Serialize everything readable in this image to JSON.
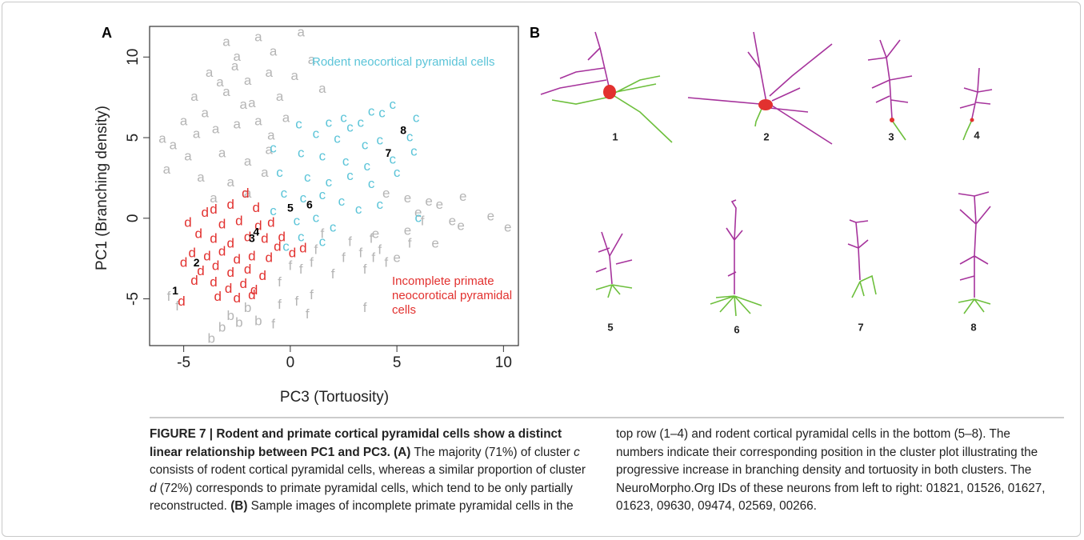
{
  "chart_data": {
    "type": "scatter",
    "panel": "A",
    "xlabel": "PC3 (Tortuosity)",
    "ylabel": "PC1 (Branching density)",
    "xlim": [
      -6.6,
      10.7
    ],
    "ylim": [
      -7.9,
      11.9
    ],
    "xticks": [
      -5,
      0,
      5,
      10
    ],
    "yticks": [
      -5,
      0,
      5,
      10
    ],
    "series": [
      {
        "name": "a",
        "color": "#b5b5b5",
        "x": [
          -3,
          -1.5,
          0.5,
          -2.5,
          -0.8,
          1,
          -3.8,
          -2,
          -1,
          0.2,
          -4.5,
          -3,
          -2.2,
          -0.5,
          1.5,
          -5,
          -4,
          -3.5,
          -2.5,
          -1.5,
          -0.2,
          -5.5,
          -4.8,
          -3.2,
          -2,
          -1,
          -4.2,
          -2.8,
          -1.2,
          -3.6,
          -2,
          -5.8,
          -6,
          -3.3,
          -2.6,
          -4.4,
          -1.8,
          -0.9
        ],
        "y": [
          10.9,
          11.2,
          11.5,
          10,
          10.3,
          9.8,
          9,
          8.5,
          9,
          8.8,
          7.5,
          7.8,
          7,
          7.5,
          8,
          6,
          6.5,
          5.5,
          5.8,
          6,
          6.2,
          4.5,
          3.8,
          4,
          3.5,
          4.2,
          2.5,
          2.2,
          2.8,
          1.2,
          1.5,
          3,
          4.9,
          8.4,
          9.4,
          5.2,
          7.1,
          5.1
        ]
      },
      {
        "name": "e",
        "color": "#b5b5b5",
        "x": [
          5.5,
          6.5,
          7,
          8.1,
          9.4,
          10.2,
          6,
          7.6,
          6.8,
          5.5,
          4.5,
          8,
          5,
          4
        ],
        "y": [
          1.2,
          1,
          0.8,
          1.3,
          0.1,
          -0.6,
          0.3,
          -0.2,
          -1.6,
          -0.8,
          1.5,
          -0.5,
          -2.5,
          -1
        ]
      },
      {
        "name": "f",
        "color": "#b5b5b5",
        "x": [
          -5.7,
          -5.3,
          3.8,
          4.2,
          4.5,
          3.5,
          3.9,
          3.3,
          1,
          0.3,
          -0.5,
          3.5,
          0.8,
          -0.8,
          6.2,
          5.6,
          1.2,
          2.5,
          2,
          0.5,
          1.5,
          0,
          2.8,
          -0.5,
          1
        ],
        "y": [
          -4.9,
          -5.5,
          -1.3,
          -2,
          -2.8,
          -3.2,
          -2.5,
          -2.2,
          -4.8,
          -5.2,
          -5.4,
          -5.6,
          -6,
          -6.6,
          -0.2,
          -1.6,
          -2,
          -2.5,
          -3.5,
          -3.2,
          -1,
          -3,
          -1.5,
          -4,
          -2.8
        ]
      },
      {
        "name": "b",
        "color": "#b5b5b5",
        "x": [
          -2.4,
          -2.8,
          -2,
          -1.5,
          -3.2,
          -3.7
        ],
        "y": [
          -6.5,
          -6.1,
          -5.6,
          -6.4,
          -6.8,
          -7.5
        ]
      },
      {
        "name": "c",
        "color": "#5bc4d8",
        "x": [
          4.8,
          5.9,
          3.8,
          4.3,
          2.5,
          1.8,
          2.8,
          3.3,
          0.4,
          1.2,
          2.2,
          3.5,
          4.2,
          5.6,
          5.8,
          -0.8,
          0.5,
          1.5,
          2.6,
          3.6,
          4.8,
          -0.5,
          0.8,
          1.8,
          2.8,
          3.8,
          -0.3,
          0.6,
          1.5,
          2.4,
          3.2,
          -0.8,
          0.3,
          1.2,
          2,
          0.5,
          1.5,
          -0.2,
          6,
          4.2,
          5
        ],
        "y": [
          7,
          6.2,
          6.6,
          6.5,
          6.2,
          5.9,
          5.6,
          5.9,
          5.8,
          5.2,
          4.9,
          4.5,
          4.8,
          5,
          4.1,
          4.3,
          4,
          3.8,
          3.5,
          3.2,
          3.6,
          2.8,
          2.5,
          2.2,
          2.6,
          2.1,
          1.5,
          1.2,
          1.4,
          1,
          0.5,
          0.4,
          -0.2,
          0,
          -0.6,
          -1.2,
          -1.5,
          -1.8,
          0,
          0.8,
          2.8
        ]
      },
      {
        "name": "d",
        "color": "#e2312f",
        "x": [
          -2.1,
          -1.6,
          -3.6,
          -2.8,
          -4,
          -3.2,
          -2.4,
          -1.5,
          -4.8,
          -4.3,
          -3.6,
          -2.8,
          -2,
          -1.2,
          -0.6,
          -4.6,
          -3.9,
          -3.2,
          -2.5,
          -1.8,
          -1,
          -5,
          -4.2,
          -3.5,
          -2.8,
          -2,
          -1.3,
          -4.5,
          -3.6,
          -2.9,
          -2.2,
          -1.7,
          -3.4,
          -2.5,
          -5.1,
          0.1,
          0.6,
          -0.4,
          -0.9,
          -1.8
        ],
        "y": [
          1.5,
          0.6,
          0.5,
          0.8,
          0.3,
          -0.4,
          -0.2,
          -0.5,
          -0.3,
          -1,
          -1.3,
          -1.6,
          -1.2,
          -1.3,
          -1.8,
          -2.2,
          -2.4,
          -2.1,
          -2.6,
          -2.4,
          -2.5,
          -2.8,
          -3.3,
          -3,
          -3.4,
          -3.2,
          -3.6,
          -3.9,
          -4,
          -4.4,
          -4.1,
          -4.5,
          -4.9,
          -5,
          -5.2,
          -2.2,
          -1.9,
          -1.2,
          -0.3,
          -4.8
        ]
      }
    ],
    "point_labels": [
      {
        "label": "1",
        "x": -5.4,
        "y": -4.55
      },
      {
        "label": "2",
        "x": -4.4,
        "y": -2.8
      },
      {
        "label": "3",
        "x": -1.8,
        "y": -1.3
      },
      {
        "label": "4",
        "x": -1.6,
        "y": -0.9
      },
      {
        "label": "5",
        "x": 0,
        "y": 0.6
      },
      {
        "label": "6",
        "x": 0.9,
        "y": 0.8
      },
      {
        "label": "7",
        "x": 4.6,
        "y": 4
      },
      {
        "label": "8",
        "x": 5.3,
        "y": 5.4
      }
    ],
    "annotations": [
      {
        "lines": [
          "Rodent neocortical pyramidal cells"
        ],
        "color": "#5bc4d8"
      },
      {
        "lines": [
          "Incomplete primate",
          "neocorotical pyramidal",
          "cells"
        ],
        "color": "#e2312f"
      }
    ]
  },
  "panel_b": {
    "panel": "B",
    "labels": [
      "1",
      "2",
      "3",
      "4",
      "5",
      "6",
      "7",
      "8"
    ]
  },
  "caption": {
    "runs": [
      {
        "style": "bold",
        "text": "FIGURE 7 | Rodent and primate cortical pyramidal cells show a distinct linear relationship between PC1 and PC3. (A)"
      },
      {
        "style": "normal",
        "text": " The majority (71%) of cluster "
      },
      {
        "style": "italic",
        "text": "c"
      },
      {
        "style": "normal",
        "text": " consists of rodent cortical pyramidal cells, whereas a similar proportion of cluster "
      },
      {
        "style": "italic",
        "text": "d"
      },
      {
        "style": "normal",
        "text": " (72%) corresponds to primate pyramidal cells, which tend to be only partially reconstructed. "
      },
      {
        "style": "bold",
        "text": "(B)"
      },
      {
        "style": "normal",
        "text": " Sample images of incomplete primate pyramidal cells in the top row (1–4) and rodent cortical pyramidal cells in the bottom (5–8). The numbers indicate their corresponding position in the cluster plot illustrating the progressive increase in branching density and tortuosity in both clusters. The NeuroMorpho.Org IDs of these neurons from left to right: 01821, 01526, 01627, 01623, 09630, 09474, 02569, 00266."
      }
    ]
  }
}
